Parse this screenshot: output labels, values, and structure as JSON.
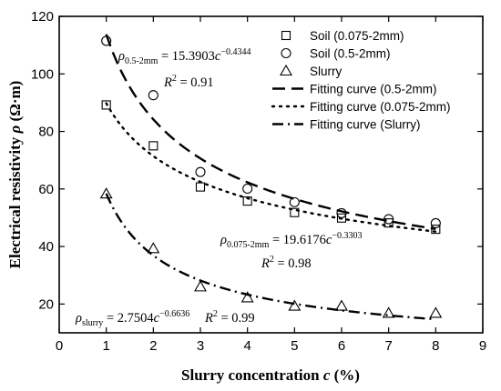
{
  "chart_data": {
    "type": "scatter",
    "title": "",
    "xlabel_text": "Slurry concentration ",
    "xlabel_var": "c",
    "xlabel_unit": " (%)",
    "ylabel_text": "Electrical resistivity ",
    "ylabel_var": "ρ",
    "ylabel_unit": " (Ω·m)",
    "xlim": [
      0,
      9
    ],
    "ylim": [
      10,
      120
    ],
    "xticks": [
      0,
      1,
      2,
      3,
      4,
      5,
      6,
      7,
      8,
      9
    ],
    "yticks": [
      20,
      40,
      60,
      80,
      100,
      120
    ],
    "grid": false,
    "legend_position": "top-right",
    "series": [
      {
        "name": "Soil (0.075-2mm)",
        "marker": "square",
        "x": [
          1,
          2,
          3,
          4,
          5,
          6,
          7,
          8
        ],
        "y": [
          89.2,
          75.0,
          60.7,
          55.8,
          51.8,
          49.9,
          48.2,
          46.0
        ]
      },
      {
        "name": "Soil (0.5-2mm)",
        "marker": "circle",
        "x": [
          1,
          2,
          3,
          4,
          5,
          6,
          7,
          8
        ],
        "y": [
          111.5,
          92.6,
          65.9,
          60.1,
          55.4,
          51.6,
          49.5,
          48.1
        ]
      },
      {
        "name": "Slurry",
        "marker": "triangle",
        "x": [
          1,
          2,
          3,
          4,
          5,
          6,
          7,
          8
        ],
        "y": [
          58.3,
          39.3,
          26.0,
          22.2,
          19.3,
          19.3,
          16.8,
          16.8
        ]
      }
    ],
    "fits": [
      {
        "name": "Fitting curve (0.5-2mm)",
        "style": "dashed",
        "coef": 15.3903,
        "exp": -0.4344
      },
      {
        "name": "Fitting curve (0.075-2mm)",
        "style": "dotted",
        "coef": 19.6176,
        "exp": -0.3303
      },
      {
        "name": "Fitting curve (Slurry)",
        "style": "dashdot",
        "coef": 2.7504,
        "exp": -0.6636
      }
    ],
    "annotations": [
      {
        "sym": "ρ",
        "sub": "0.5-2mm",
        "eq": " = 15.3903",
        "var": "c",
        "sup": "−0.4344",
        "r2": "= 0.91"
      },
      {
        "sym": "ρ",
        "sub": "0.075-2mm",
        "eq": " = 19.6176",
        "var": "c",
        "sup": "−0.3303",
        "r2": "= 0.98"
      },
      {
        "sym": "ρ",
        "sub": "slurry",
        "eq": " = 2.7504",
        "var": "c",
        "sup": "−0.6636",
        "r2": "= 0.99"
      }
    ]
  }
}
